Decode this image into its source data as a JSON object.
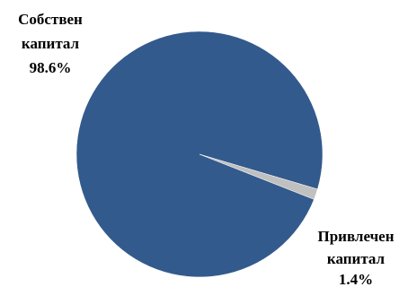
{
  "chart_data": {
    "type": "pie",
    "slices": [
      {
        "label_lines": [
          "Собствен",
          "капитал"
        ],
        "value_label": "98.6%",
        "value": 98.6,
        "color": "#335a8c"
      },
      {
        "label_lines": [
          "Привлечен",
          "капитал"
        ],
        "value_label": "1.4%",
        "value": 1.4,
        "color": "#c0c0c0"
      }
    ],
    "legend": "none"
  }
}
